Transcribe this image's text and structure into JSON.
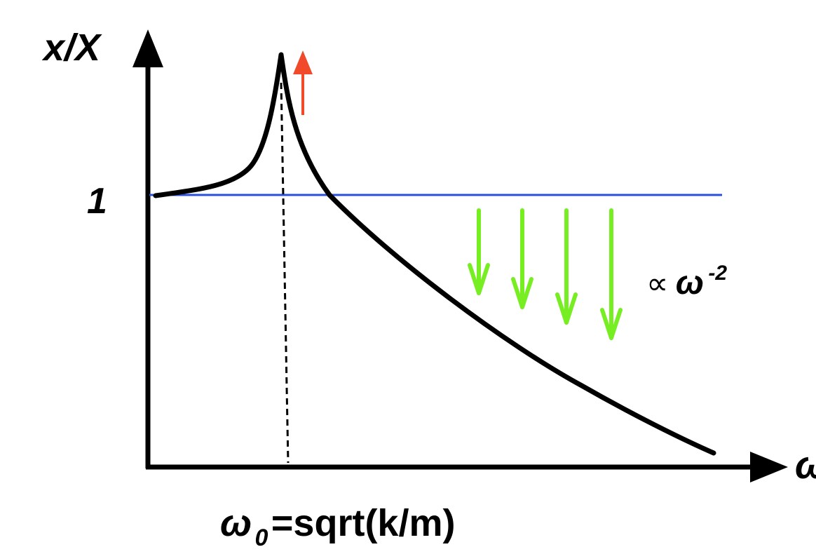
{
  "labels": {
    "y_axis": "x/X",
    "x_axis": "ω",
    "unity": "1",
    "resonance_symbol": "ω",
    "resonance_subscript": "0",
    "resonance_formula": "=sqrt(k/m)",
    "proportional_symbol": "∝",
    "falloff_base": "ω",
    "falloff_exponent": "-2"
  },
  "colors": {
    "axes": "#000000",
    "curve": "#000000",
    "unity_line": "#2b4fd8",
    "resonance_arrow": "#f04a2a",
    "falloff_arrows": "#77ee22"
  },
  "elements": {
    "falloff_arrow_count": 4
  }
}
